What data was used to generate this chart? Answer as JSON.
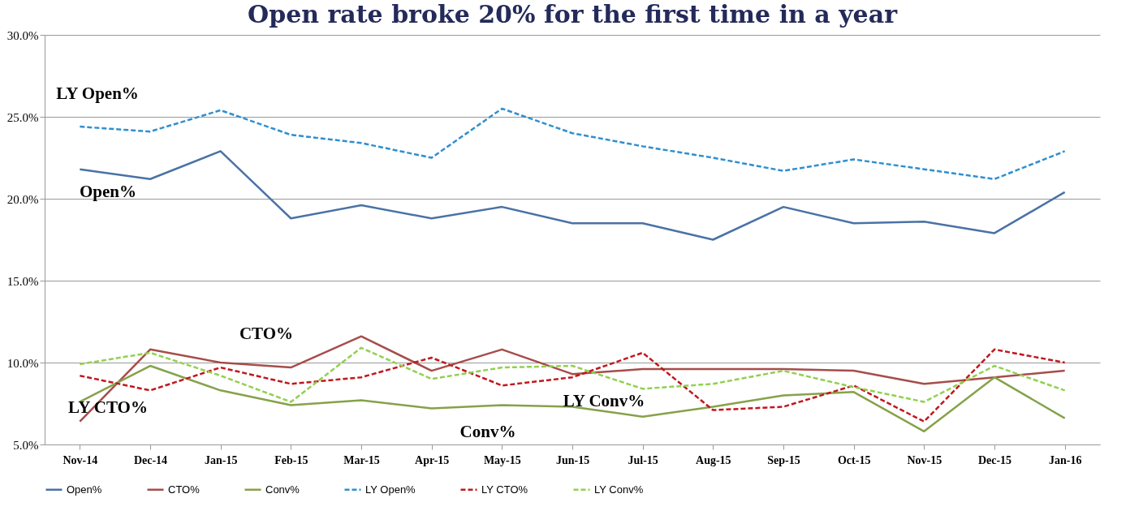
{
  "chart_data": {
    "type": "line",
    "title": "Open rate broke 20% for the first time in a year",
    "categories": [
      "Nov-14",
      "Dec-14",
      "Jan-15",
      "Feb-15",
      "Mar-15",
      "Apr-15",
      "May-15",
      "Jun-15",
      "Jul-15",
      "Aug-15",
      "Sep-15",
      "Oct-15",
      "Nov-15",
      "Dec-15",
      "Jan-16"
    ],
    "series": [
      {
        "name": "Open%",
        "color": "#4a72a6",
        "line_style": "solid",
        "values": [
          21.8,
          21.2,
          22.9,
          18.8,
          19.6,
          18.8,
          19.5,
          18.5,
          18.5,
          17.5,
          19.5,
          18.5,
          18.6,
          17.9,
          20.4
        ]
      },
      {
        "name": "CTO%",
        "color": "#a64d4a",
        "line_style": "solid",
        "values": [
          6.4,
          10.8,
          10.0,
          9.7,
          11.6,
          9.5,
          10.8,
          9.3,
          9.6,
          9.6,
          9.6,
          9.5,
          8.7,
          9.1,
          9.5
        ]
      },
      {
        "name": "Conv%",
        "color": "#86a24a",
        "line_style": "solid",
        "values": [
          7.6,
          9.8,
          8.3,
          7.4,
          7.7,
          7.2,
          7.4,
          7.3,
          6.7,
          7.3,
          8.0,
          8.2,
          5.8,
          9.1,
          6.6
        ]
      },
      {
        "name": "LY Open%",
        "color": "#2f8fcf",
        "line_style": "dashed",
        "values": [
          24.4,
          24.1,
          25.4,
          23.9,
          23.4,
          22.5,
          25.5,
          24.0,
          23.2,
          22.5,
          21.7,
          22.4,
          21.8,
          21.2,
          22.9
        ]
      },
      {
        "name": "LY CTO%",
        "color": "#c0181e",
        "line_style": "dashed",
        "values": [
          9.2,
          8.3,
          9.7,
          8.7,
          9.1,
          10.3,
          8.6,
          9.1,
          10.6,
          7.1,
          7.3,
          8.6,
          6.4,
          10.8,
          10.0
        ]
      },
      {
        "name": "LY Conv%",
        "color": "#92d050",
        "line_style": "dashed",
        "values": [
          9.9,
          10.6,
          9.2,
          7.6,
          10.9,
          9.0,
          9.7,
          9.8,
          8.4,
          8.7,
          9.5,
          8.5,
          7.6,
          9.8,
          8.3
        ]
      }
    ],
    "ylim": [
      5,
      30
    ],
    "yticks": [
      {
        "value": 5,
        "label": "5.0%"
      },
      {
        "value": 10,
        "label": "10.0%"
      },
      {
        "value": 15,
        "label": "15.0%"
      },
      {
        "value": 20,
        "label": "20.0%"
      },
      {
        "value": 25,
        "label": "25.0%"
      },
      {
        "value": 30,
        "label": "30.0%"
      }
    ],
    "grid": "y",
    "legend": "bottom",
    "marker": "none",
    "annotations": [
      "LY Open%",
      "Open%",
      "CTO%",
      "LY CTO%",
      "LY Conv%",
      "Conv%"
    ]
  }
}
